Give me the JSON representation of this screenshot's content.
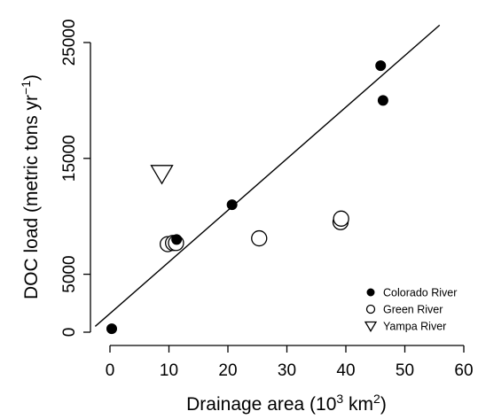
{
  "chart_data": {
    "type": "scatter",
    "xlabel": "Drainage area (10³ km²)",
    "ylabel": "DOC load (metric tons yr⁻¹)",
    "xlim": [
      0,
      60
    ],
    "ylim": [
      0,
      25000
    ],
    "x_ticks": [
      {
        "value": 0,
        "label": "0"
      },
      {
        "value": 10,
        "label": "10"
      },
      {
        "value": 20,
        "label": "20"
      },
      {
        "value": 30,
        "label": "30"
      },
      {
        "value": 40,
        "label": "40"
      },
      {
        "value": 50,
        "label": "50"
      },
      {
        "value": 60,
        "label": "60"
      }
    ],
    "y_ticks": [
      {
        "value": 0,
        "label": "0"
      },
      {
        "value": 5000,
        "label": "5000"
      },
      {
        "value": 15000,
        "label": "15000"
      },
      {
        "value": 25000,
        "label": "25000"
      }
    ],
    "grid": false,
    "legend_position": "bottom-right",
    "series": [
      {
        "name": "Colorado River",
        "marker": "filled-circle",
        "points": [
          {
            "x": 0.3,
            "y": 300
          },
          {
            "x": 11.3,
            "y": 8000
          },
          {
            "x": 20.7,
            "y": 11000
          },
          {
            "x": 45.9,
            "y": 23000
          },
          {
            "x": 46.3,
            "y": 20000
          }
        ]
      },
      {
        "name": "Green River",
        "marker": "open-circle",
        "points": [
          {
            "x": 9.8,
            "y": 7600
          },
          {
            "x": 10.7,
            "y": 7700
          },
          {
            "x": 11.2,
            "y": 7700
          },
          {
            "x": 25.3,
            "y": 8100
          },
          {
            "x": 39.1,
            "y": 9500
          },
          {
            "x": 39.2,
            "y": 9800
          }
        ]
      },
      {
        "name": "Yampa River",
        "marker": "open-triangle-down",
        "points": [
          {
            "x": 8.8,
            "y": 13700
          }
        ]
      }
    ],
    "regression_line": {
      "x1": -2.5,
      "y1": 500,
      "x2": 55.9,
      "y2": 26500
    }
  }
}
